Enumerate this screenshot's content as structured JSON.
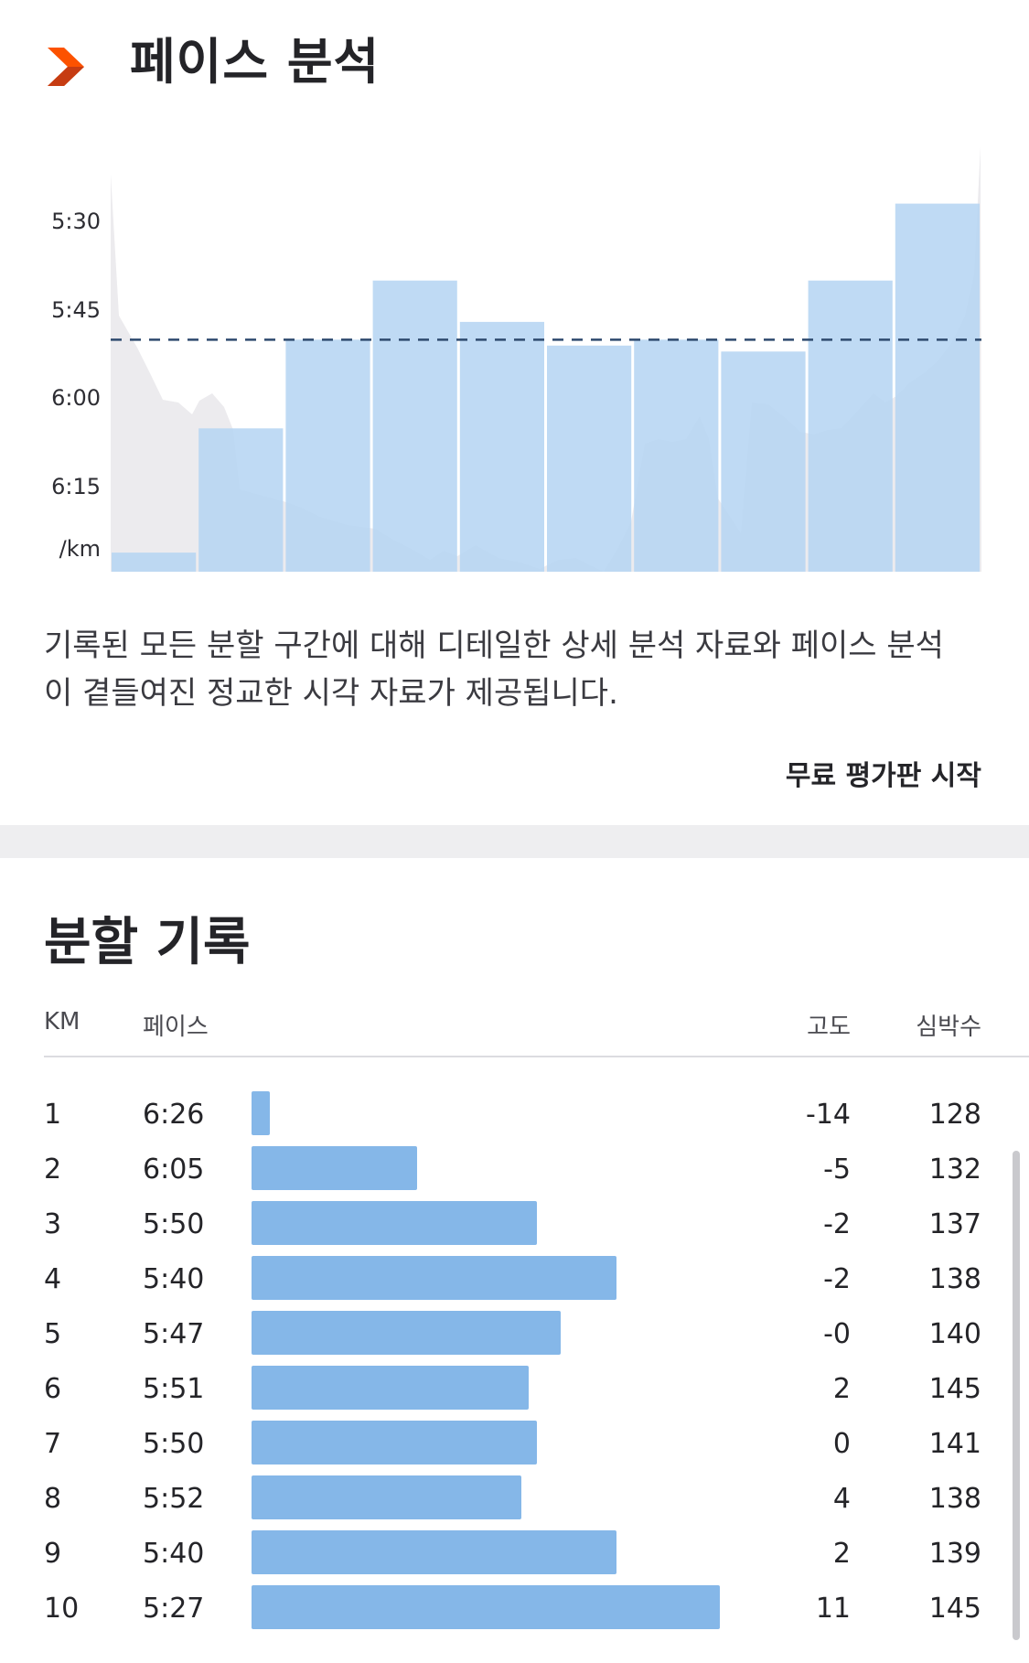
{
  "header": {
    "logo_icon": "strava-chevron-icon",
    "title": "페이스 분석"
  },
  "pace_chart": {
    "y_ticks": [
      "5:30",
      "5:45",
      "6:00",
      "6:15"
    ],
    "unit_label": "/km",
    "colors": {
      "bar": "#b6d5f3",
      "bar_overlap": "#a9c2de",
      "elevation": "#ecebee",
      "avg_line": "#2e4a6e"
    }
  },
  "chart_data": {
    "type": "bar",
    "categories": [
      "1",
      "2",
      "3",
      "4",
      "5",
      "6",
      "7",
      "8",
      "9",
      "10"
    ],
    "values": [
      "6:26",
      "6:05",
      "5:50",
      "5:40",
      "5:47",
      "5:51",
      "5:50",
      "5:52",
      "5:40",
      "5:27"
    ],
    "value_seconds": [
      386,
      365,
      350,
      340,
      347,
      351,
      350,
      352,
      340,
      327
    ],
    "average_seconds": 350,
    "ylabel": "/km",
    "ylim": [
      "5:20",
      "6:35"
    ],
    "y_inverted": true,
    "grid": false
  },
  "description": "기록된 모든 분할 구간에 대해 디테일한 상세 분석 자료와 페이스 분석이 곁들여진 정교한 시각 자료가 제공됩니다.",
  "cta_label": "무료 평가판 시작",
  "splits": {
    "title": "분할 기록",
    "headers": {
      "km": "KM",
      "pace": "페이스",
      "elev": "고도",
      "hr": "심박수"
    },
    "bar_color": "#85b7e8",
    "rows": [
      {
        "km": "1",
        "pace": "6:26",
        "elev": "-14",
        "hr": "128"
      },
      {
        "km": "2",
        "pace": "6:05",
        "elev": "-5",
        "hr": "132"
      },
      {
        "km": "3",
        "pace": "5:50",
        "elev": "-2",
        "hr": "137"
      },
      {
        "km": "4",
        "pace": "5:40",
        "elev": "-2",
        "hr": "138"
      },
      {
        "km": "5",
        "pace": "5:47",
        "elev": "-0",
        "hr": "140"
      },
      {
        "km": "6",
        "pace": "5:51",
        "elev": "2",
        "hr": "145"
      },
      {
        "km": "7",
        "pace": "5:50",
        "elev": "0",
        "hr": "141"
      },
      {
        "km": "8",
        "pace": "5:52",
        "elev": "4",
        "hr": "138"
      },
      {
        "km": "9",
        "pace": "5:40",
        "elev": "2",
        "hr": "139"
      },
      {
        "km": "10",
        "pace": "5:27",
        "elev": "11",
        "hr": "145"
      }
    ]
  }
}
